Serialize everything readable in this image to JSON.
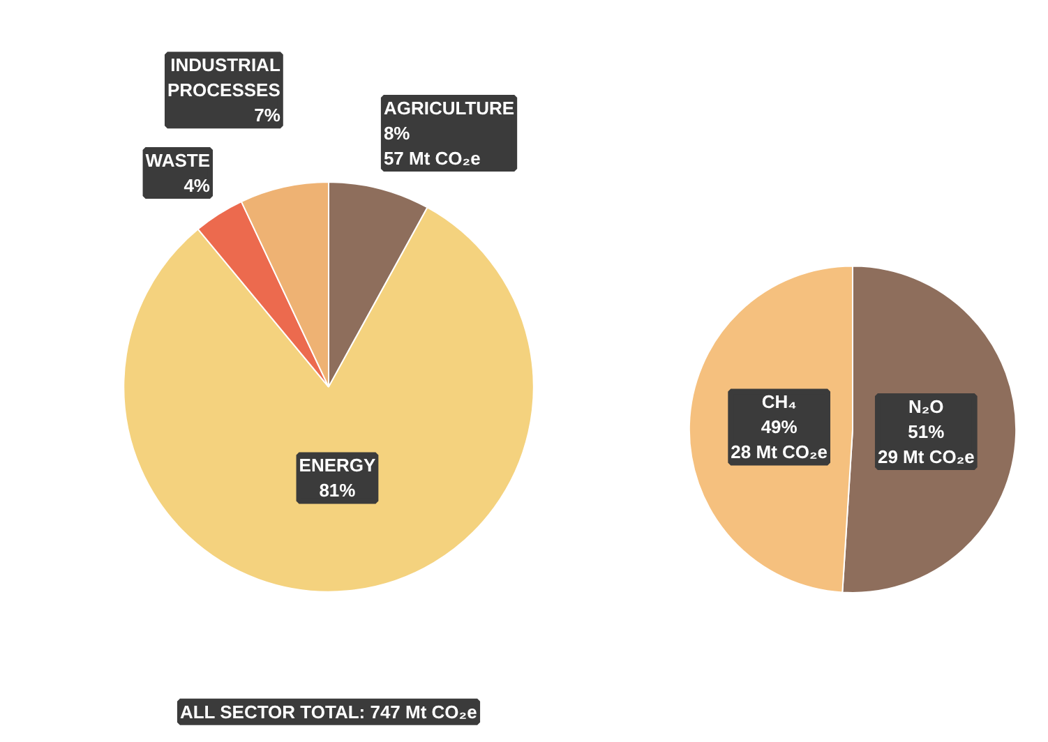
{
  "chart_data": [
    {
      "type": "pie",
      "categories": [
        "AGRICULTURE",
        "ENERGY",
        "WASTE",
        "INDUSTRIAL PROCESSES"
      ],
      "values": [
        8,
        81,
        4,
        7
      ],
      "colors": [
        "#8e6e5c",
        "#f4d27e",
        "#ec6a4e",
        "#eeb273"
      ],
      "value_labels": [
        "8%\n57 Mt CO₂e",
        "81%",
        "4%",
        "7%"
      ],
      "annotations": [
        "ALL SECTOR TOTAL: 747 Mt CO₂e"
      ]
    },
    {
      "type": "pie",
      "categories": [
        "N₂O",
        "CH₄"
      ],
      "values": [
        51,
        49
      ],
      "colors": [
        "#8e6e5c",
        "#f5c07e"
      ],
      "value_labels": [
        "51%\n29 Mt CO₂e",
        "49%\n28 Mt CO₂e"
      ]
    }
  ]
}
